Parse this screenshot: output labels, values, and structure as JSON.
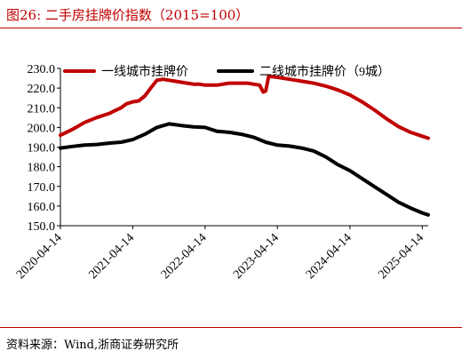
{
  "figure": {
    "title": "图26:   二手房挂牌价指数（2015=100）",
    "source": "资料来源：Wind,浙商证券研究所"
  },
  "colors": {
    "accent": "#c00000",
    "series1": "#c00000",
    "series2": "#000000"
  },
  "chart_data": {
    "type": "line",
    "title": "",
    "xlabel": "",
    "ylabel": "",
    "ylim": [
      150,
      230
    ],
    "yticks": [
      "150.0",
      "160.0",
      "170.0",
      "180.0",
      "190.0",
      "200.0",
      "210.0",
      "220.0",
      "230.0"
    ],
    "xlim": [
      "2020-04-14",
      "2025-05-14"
    ],
    "xticks": [
      "2020-04-14",
      "2021-04-14",
      "2022-04-14",
      "2023-04-14",
      "2024-04-14",
      "2025-04-14"
    ],
    "grid": false,
    "legend": "top",
    "series": [
      {
        "name": "一线城市挂牌价",
        "color": "#c00000",
        "x": [
          "2020-04-14",
          "2020-06-14",
          "2020-08-14",
          "2020-10-14",
          "2020-12-14",
          "2021-01-14",
          "2021-02-14",
          "2021-03-14",
          "2021-04-14",
          "2021-05-14",
          "2021-06-14",
          "2021-07-14",
          "2021-08-14",
          "2021-09-14",
          "2021-10-14",
          "2021-11-14",
          "2021-12-14",
          "2022-01-14",
          "2022-02-14",
          "2022-03-14",
          "2022-04-14",
          "2022-05-14",
          "2022-06-14",
          "2022-07-14",
          "2022-08-14",
          "2022-09-14",
          "2022-10-14",
          "2022-11-14",
          "2022-12-14",
          "2023-01-14",
          "2023-02-01",
          "2023-02-14",
          "2023-03-01",
          "2023-04-14",
          "2023-06-14",
          "2023-08-14",
          "2023-10-14",
          "2023-12-14",
          "2024-02-14",
          "2024-04-14",
          "2024-06-14",
          "2024-08-14",
          "2024-10-14",
          "2024-12-14",
          "2025-02-14",
          "2025-04-14",
          "2025-05-14"
        ],
        "y": [
          196.0,
          199.0,
          202.5,
          205.0,
          207.0,
          208.5,
          210.0,
          212.0,
          213.0,
          213.5,
          216.0,
          220.0,
          224.0,
          224.5,
          224.0,
          223.5,
          223.0,
          222.5,
          222.0,
          222.0,
          221.5,
          221.5,
          221.5,
          222.0,
          222.5,
          222.5,
          222.5,
          222.5,
          222.0,
          221.5,
          218.0,
          218.5,
          226.0,
          225.5,
          224.5,
          223.5,
          222.5,
          221.0,
          219.0,
          216.5,
          213.0,
          209.0,
          204.5,
          200.5,
          197.5,
          195.5,
          194.5
        ]
      },
      {
        "name": "二线城市挂牌价（9城）",
        "color": "#000000",
        "x": [
          "2020-04-14",
          "2020-06-14",
          "2020-08-14",
          "2020-10-14",
          "2020-12-14",
          "2021-02-14",
          "2021-04-14",
          "2021-06-14",
          "2021-08-14",
          "2021-10-14",
          "2021-12-14",
          "2022-02-14",
          "2022-04-14",
          "2022-06-14",
          "2022-08-14",
          "2022-10-14",
          "2022-12-14",
          "2023-02-14",
          "2023-04-14",
          "2023-06-14",
          "2023-08-14",
          "2023-10-14",
          "2023-12-14",
          "2024-02-14",
          "2024-04-14",
          "2024-06-14",
          "2024-08-14",
          "2024-10-14",
          "2024-12-14",
          "2025-02-14",
          "2025-04-14",
          "2025-05-14"
        ],
        "y": [
          189.5,
          190.3,
          191.0,
          191.3,
          192.0,
          192.5,
          193.8,
          196.5,
          200.0,
          201.8,
          201.0,
          200.3,
          200.0,
          198.0,
          197.5,
          196.5,
          195.0,
          192.5,
          191.0,
          190.5,
          189.5,
          188.0,
          185.0,
          181.0,
          178.0,
          174.0,
          170.0,
          166.0,
          162.0,
          159.0,
          156.5,
          155.5
        ]
      }
    ]
  }
}
